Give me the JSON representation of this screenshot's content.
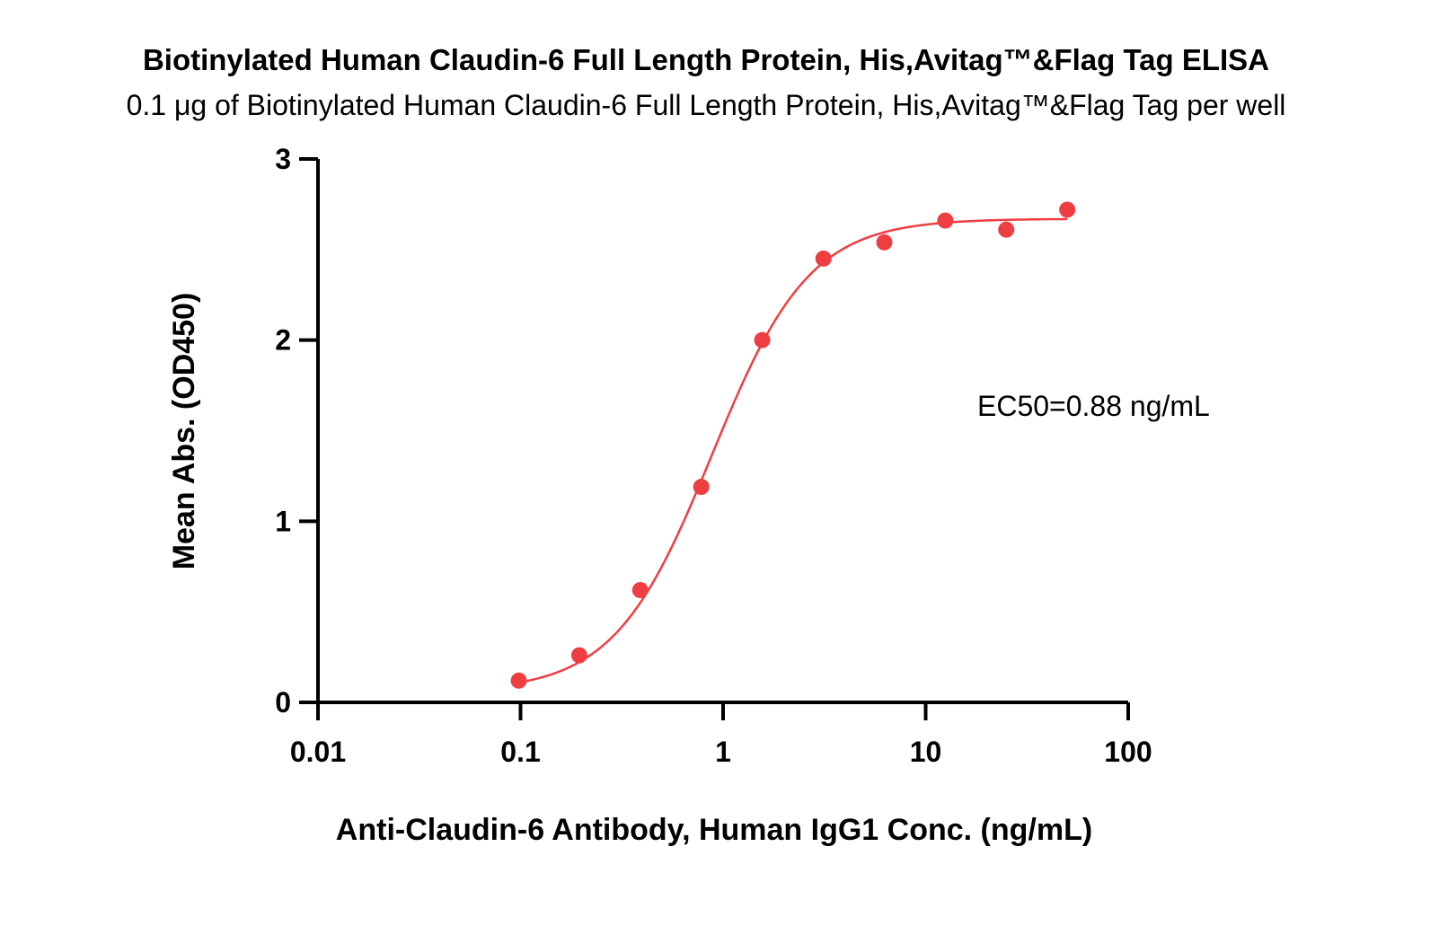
{
  "chart_data": {
    "type": "scatter",
    "title": "Biotinylated Human Claudin-6 Full Length Protein, His,Avitag™&Flag Tag ELISA",
    "subtitle": "0.1 μg of Biotinylated Human Claudin-6 Full Length Protein, His,Avitag™&Flag Tag per well",
    "xlabel": "Anti-Claudin-6 Antibody, Human IgG1 Conc. (ng/mL)",
    "ylabel": "Mean Abs. (OD450)",
    "x_scale": "log",
    "xlim": [
      0.01,
      100
    ],
    "ylim": [
      0,
      3
    ],
    "x_ticks": [
      {
        "value": 0.01,
        "label": "0.01"
      },
      {
        "value": 0.1,
        "label": "0.1"
      },
      {
        "value": 1,
        "label": "1"
      },
      {
        "value": 10,
        "label": "10"
      },
      {
        "value": 100,
        "label": "100"
      }
    ],
    "y_ticks": [
      {
        "value": 0,
        "label": "0"
      },
      {
        "value": 1,
        "label": "1"
      },
      {
        "value": 2,
        "label": "2"
      },
      {
        "value": 3,
        "label": "3"
      }
    ],
    "grid": false,
    "legend": "none",
    "series": [
      {
        "color": "#ef3e42",
        "x": [
          0.098,
          0.195,
          0.39,
          0.78,
          1.56,
          3.13,
          6.25,
          12.5,
          25,
          50
        ],
        "y": [
          0.12,
          0.26,
          0.62,
          1.19,
          2.0,
          2.45,
          2.54,
          2.66,
          2.61,
          2.72
        ]
      }
    ],
    "fit_curve": {
      "color": "#ef3e42",
      "model": "4PL",
      "bottom": 0.06,
      "top": 2.67,
      "ec50": 0.88,
      "hill": 1.8,
      "x_range": [
        0.098,
        50
      ]
    },
    "annotations": [
      {
        "text": "EC50=0.88 ng/mL",
        "position": "right-middle"
      }
    ]
  }
}
